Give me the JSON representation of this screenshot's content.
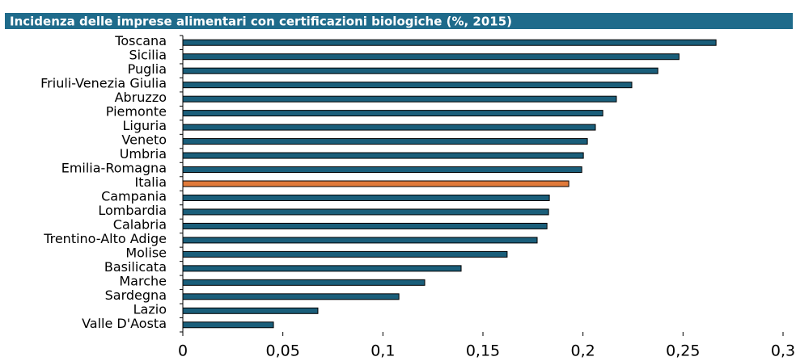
{
  "chart_data": {
    "type": "barh",
    "title": "Incidenza delle imprese alimentari con certificazioni biologiche (%, 2015)",
    "categories": [
      "Toscana",
      "Sicilia",
      "Puglia",
      "Friuli-Venezia Giulia",
      "Abruzzo",
      "Piemonte",
      "Liguria",
      "Veneto",
      "Umbria",
      "Emilia-Romagna",
      "Italia",
      "Campania",
      "Lombardia",
      "Calabria",
      "Trentino-Alto Adige",
      "Molise",
      "Basilicata",
      "Marche",
      "Sardegna",
      "Lazio",
      "Valle D'Aosta"
    ],
    "values": [
      0.2665,
      0.248,
      0.2374,
      0.2244,
      0.2167,
      0.2099,
      0.2062,
      0.2022,
      0.2002,
      0.1994,
      0.1929,
      0.1832,
      0.1828,
      0.182,
      0.1771,
      0.1621,
      0.1391,
      0.1209,
      0.108,
      0.0675,
      0.0453
    ],
    "colors": [
      "#1a5e7a",
      "#1a5e7a",
      "#1a5e7a",
      "#1a5e7a",
      "#1a5e7a",
      "#1a5e7a",
      "#1a5e7a",
      "#1a5e7a",
      "#1a5e7a",
      "#1a5e7a",
      "#e07a3a",
      "#1a5e7a",
      "#1a5e7a",
      "#1a5e7a",
      "#1a5e7a",
      "#1a5e7a",
      "#1a5e7a",
      "#1a5e7a",
      "#1a5e7a",
      "#1a5e7a",
      "#1a5e7a"
    ],
    "title_color": "#1f6b8b",
    "xlim": [
      0,
      0.3
    ],
    "xticks": [
      0,
      {
        "value": 0.05,
        "label": "0,05"
      },
      {
        "value": 0.1,
        "label": "0,1"
      },
      {
        "value": 0.15,
        "label": "0,15"
      },
      {
        "value": 0.2,
        "label": "0,2"
      },
      {
        "value": 0.25,
        "label": "0,25"
      },
      {
        "value": 0.3,
        "label": "0,3"
      }
    ],
    "grid": false
  }
}
